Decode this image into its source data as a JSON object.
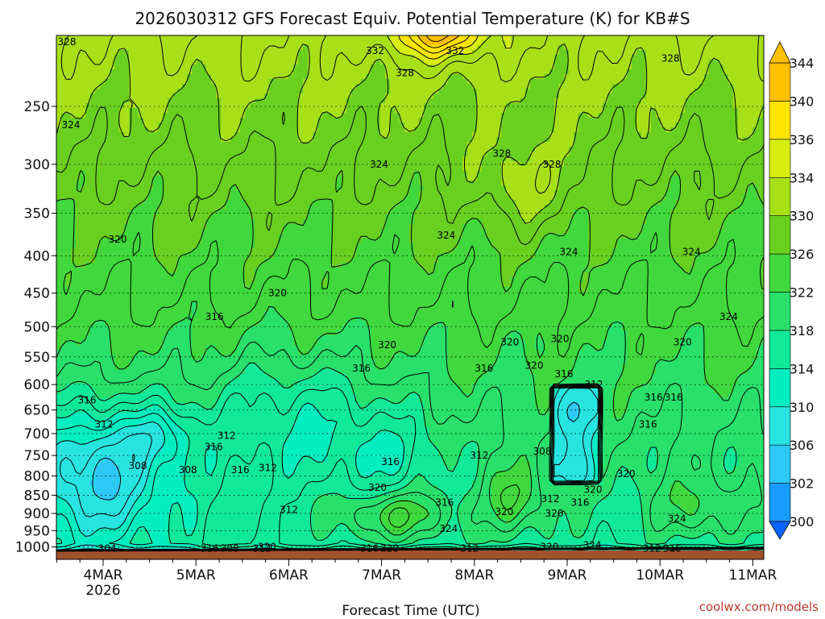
{
  "chart_data": {
    "type": "heatmap",
    "title": "2026030312 GFS Forecast Equiv. Potential Temperature (K) for KB#S",
    "xlabel": "Forecast Time (UTC)",
    "ylabel": "",
    "x_ticks": [
      "4MAR",
      "5MAR",
      "6MAR",
      "7MAR",
      "8MAR",
      "9MAR",
      "10MAR",
      "11MAR"
    ],
    "x_year_label": "2026",
    "y_ticks": [
      250,
      300,
      350,
      400,
      450,
      500,
      550,
      600,
      650,
      700,
      750,
      800,
      850,
      900,
      950,
      1000
    ],
    "ylim": [
      1000,
      200
    ],
    "y_scale": "log-pressure",
    "grid": "dotted horizontal at pressure ticks",
    "colorbar": {
      "levels": [
        300,
        302,
        306,
        310,
        314,
        318,
        322,
        326,
        330,
        334,
        336,
        340,
        344
      ],
      "colors": [
        "#0a64ff",
        "#1a9cff",
        "#2ec8f6",
        "#28e4e0",
        "#00eec0",
        "#10e89a",
        "#28e06a",
        "#40d83c",
        "#6ad020",
        "#a8e018",
        "#d8ee10",
        "#ffe400",
        "#ffc000"
      ]
    },
    "contour_labels": [
      {
        "x": "4MAR",
        "p": 200,
        "value": "328"
      },
      {
        "x": "7MAR",
        "p": 210,
        "value": "332"
      },
      {
        "x": "7MAR",
        "p": 225,
        "value": "328"
      },
      {
        "x": "8MAR",
        "p": 210,
        "value": "332"
      },
      {
        "x": "10MAR",
        "p": 215,
        "value": "328"
      },
      {
        "x": "4MAR",
        "p": 265,
        "value": "324"
      },
      {
        "x": "7MAR",
        "p": 300,
        "value": "324"
      },
      {
        "x": "8MAR",
        "p": 290,
        "value": "328"
      },
      {
        "x": "9MAR",
        "p": 300,
        "value": "328"
      },
      {
        "x": "4MAR",
        "p": 380,
        "value": "320"
      },
      {
        "x": "8MAR",
        "p": 375,
        "value": "324"
      },
      {
        "x": "9MAR",
        "p": 395,
        "value": "324"
      },
      {
        "x": "10MAR",
        "p": 395,
        "value": "324"
      },
      {
        "x": "6MAR",
        "p": 450,
        "value": "320"
      },
      {
        "x": "5MAR",
        "p": 485,
        "value": "316"
      },
      {
        "x": "11MAR",
        "p": 485,
        "value": "324"
      },
      {
        "x": "7MAR",
        "p": 530,
        "value": "320"
      },
      {
        "x": "8MAR",
        "p": 525,
        "value": "320"
      },
      {
        "x": "9MAR",
        "p": 520,
        "value": "320"
      },
      {
        "x": "10MAR",
        "p": 525,
        "value": "320"
      },
      {
        "x": "7MAR",
        "p": 570,
        "value": "316"
      },
      {
        "x": "8MAR",
        "p": 570,
        "value": "316"
      },
      {
        "x": "9MAR",
        "p": 565,
        "value": "320"
      },
      {
        "x": "9MAR",
        "p": 580,
        "value": "316"
      },
      {
        "x": "9MAR",
        "p": 600,
        "value": "312"
      },
      {
        "x": "4MAR",
        "p": 630,
        "value": "316"
      },
      {
        "x": "10MAR",
        "p": 625,
        "value": "316"
      },
      {
        "x": "10MAR",
        "p": 625,
        "value": "316"
      },
      {
        "x": "4MAR",
        "p": 680,
        "value": "312"
      },
      {
        "x": "5MAR",
        "p": 705,
        "value": "312"
      },
      {
        "x": "10MAR",
        "p": 680,
        "value": "316"
      },
      {
        "x": "5MAR",
        "p": 730,
        "value": "316"
      },
      {
        "x": "9MAR",
        "p": 740,
        "value": "308"
      },
      {
        "x": "8MAR",
        "p": 750,
        "value": "312"
      },
      {
        "x": "4MAR",
        "p": 775,
        "value": "308"
      },
      {
        "x": "5MAR",
        "p": 785,
        "value": "308"
      },
      {
        "x": "5MAR",
        "p": 785,
        "value": "316"
      },
      {
        "x": "6MAR",
        "p": 780,
        "value": "312"
      },
      {
        "x": "7MAR",
        "p": 765,
        "value": "316"
      },
      {
        "x": "10MAR",
        "p": 795,
        "value": "320"
      },
      {
        "x": "7MAR",
        "p": 830,
        "value": "320"
      },
      {
        "x": "9MAR",
        "p": 835,
        "value": "320"
      },
      {
        "x": "9MAR",
        "p": 860,
        "value": "312"
      },
      {
        "x": "9MAR",
        "p": 870,
        "value": "316"
      },
      {
        "x": "8MAR",
        "p": 870,
        "value": "316"
      },
      {
        "x": "6MAR",
        "p": 890,
        "value": "312"
      },
      {
        "x": "8MAR",
        "p": 895,
        "value": "320"
      },
      {
        "x": "9MAR",
        "p": 900,
        "value": "320"
      },
      {
        "x": "10MAR",
        "p": 915,
        "value": "324"
      },
      {
        "x": "8MAR",
        "p": 945,
        "value": "324"
      },
      {
        "x": "4MAR",
        "p": 1005,
        "value": "304"
      },
      {
        "x": "5MAR",
        "p": 1005,
        "value": "308"
      },
      {
        "x": "5MAR",
        "p": 1005,
        "value": "316"
      },
      {
        "x": "5MAR",
        "p": 1005,
        "value": "312"
      },
      {
        "x": "6MAR",
        "p": 1000,
        "value": "320"
      },
      {
        "x": "7MAR",
        "p": 1005,
        "value": "320"
      },
      {
        "x": "7MAR",
        "p": 1005,
        "value": "316"
      },
      {
        "x": "8MAR",
        "p": 1005,
        "value": "312"
      },
      {
        "x": "9MAR",
        "p": 995,
        "value": "324"
      },
      {
        "x": "9MAR",
        "p": 1000,
        "value": "320"
      },
      {
        "x": "10MAR",
        "p": 1005,
        "value": "316"
      },
      {
        "x": "10MAR",
        "p": 1005,
        "value": "312"
      }
    ]
  },
  "credit": "coolwx.com/models"
}
